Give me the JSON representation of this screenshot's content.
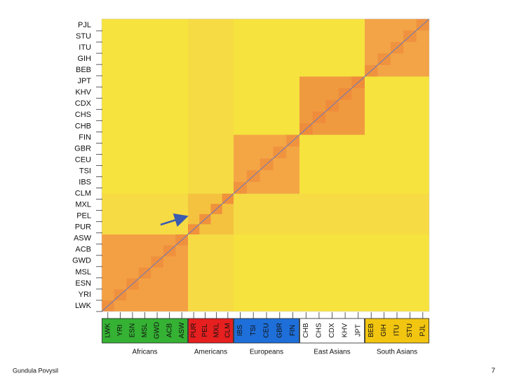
{
  "rows": [
    "PJL",
    "STU",
    "ITU",
    "GIH",
    "BEB",
    "JPT",
    "KHV",
    "CDX",
    "CHS",
    "CHB",
    "FIN",
    "GBR",
    "CEU",
    "TSI",
    "IBS",
    "CLM",
    "MXL",
    "PEL",
    "PUR",
    "ASW",
    "ACB",
    "GWD",
    "MSL",
    "ESN",
    "YRI",
    "LWK"
  ],
  "groups": [
    {
      "name": "Africans",
      "color": "#35b234",
      "populations": [
        "LWK",
        "YRI",
        "ESN",
        "MSL",
        "GWD",
        "ACB",
        "ASW"
      ]
    },
    {
      "name": "Americans",
      "color": "#e61f1f",
      "populations": [
        "PUR",
        "PEL",
        "MXL",
        "CLM"
      ]
    },
    {
      "name": "Europeans",
      "color": "#1e6fd9",
      "populations": [
        "IBS",
        "TSI",
        "CEU",
        "GBR",
        "FIN"
      ]
    },
    {
      "name": "East Asians",
      "color": "#ffffff",
      "populations": [
        "CHB",
        "CHS",
        "CDX",
        "KHV",
        "JPT"
      ]
    },
    {
      "name": "South Asians",
      "color": "#f2c511",
      "populations": [
        "BEB",
        "GIH",
        "ITU",
        "STU",
        "PJL"
      ]
    }
  ],
  "footer": {
    "author": "Gundula Povysil",
    "page": "7"
  }
}
